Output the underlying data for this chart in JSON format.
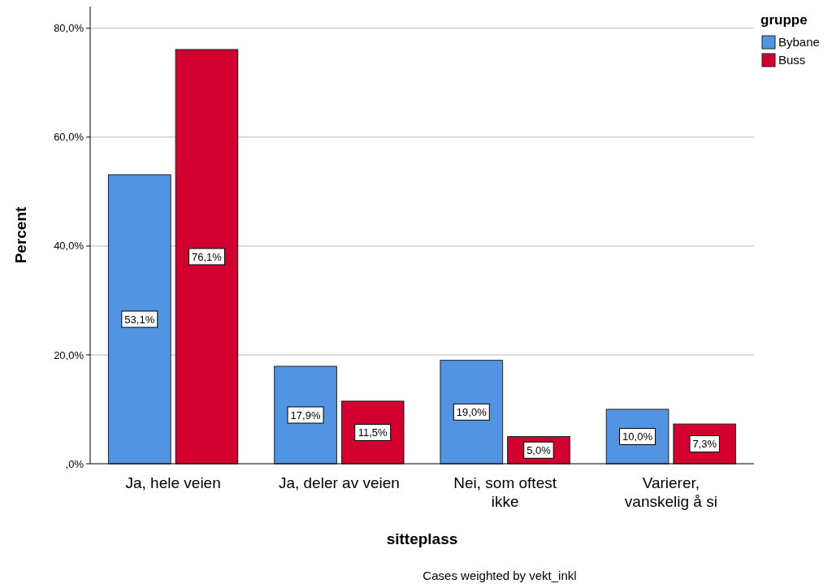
{
  "chart_data": {
    "type": "bar",
    "xlabel": "sitteplass",
    "ylabel": "Percent",
    "legend_title": "gruppe",
    "legend": "top right",
    "grid": "y",
    "categories": [
      "Ja, hele veien",
      "Ja, deler av veien",
      "Nei, som oftest ikke",
      "Varierer, vanskelig å si"
    ],
    "series": [
      {
        "name": "Bybane",
        "color": "#5294e2",
        "values": [
          53.1,
          17.9,
          19.0,
          10.0
        ],
        "value_labels": [
          "53,1%",
          "17,9%",
          "19,0%",
          "10,0%"
        ]
      },
      {
        "name": "Buss",
        "color": "#d1002e",
        "values": [
          76.1,
          11.5,
          5.0,
          7.3
        ],
        "value_labels": [
          "76,1%",
          "11,5%",
          "5,0%",
          "7,3%"
        ]
      }
    ],
    "ylim": [
      0,
      84
    ],
    "yticks": [
      {
        "value": 0,
        "label": ",0%"
      },
      {
        "value": 20,
        "label": "20,0%"
      },
      {
        "value": 40,
        "label": "40,0%"
      },
      {
        "value": 60,
        "label": "60,0%"
      },
      {
        "value": 80,
        "label": "80,0%"
      }
    ],
    "annotations": [
      "Cases weighted by vekt_inkl"
    ]
  }
}
